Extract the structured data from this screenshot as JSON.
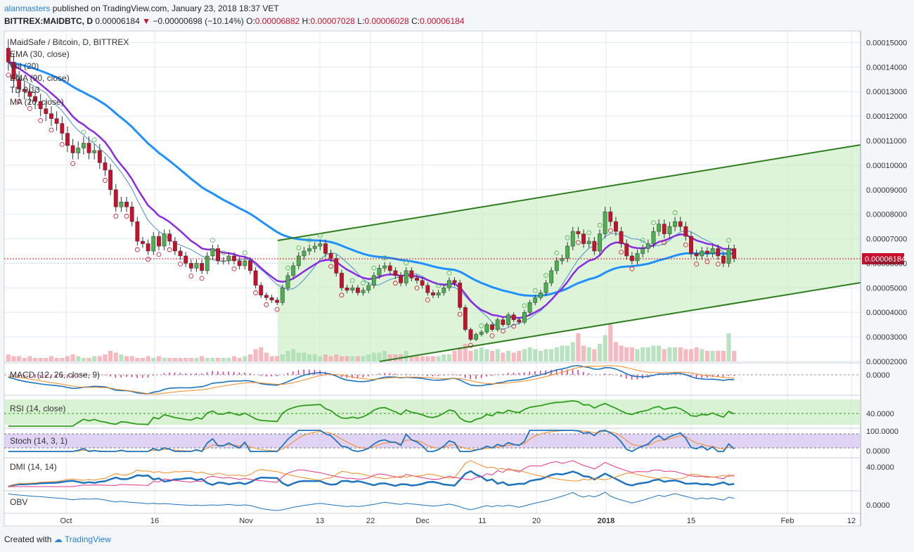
{
  "header": {
    "author": "alanmasters",
    "published": "published on TradingView.com, January 23, 2018 18:37 VET"
  },
  "ticker": {
    "symbol": "BITTREX:MAIDBTC, D",
    "last": "0.00006184",
    "change": "−0.00000698 (−10.14%)",
    "open_label": "O:",
    "open": "0.00006882",
    "high_label": "H:",
    "high": "0.00007028",
    "low_label": "L:",
    "low": "0.00006028",
    "close_label": "C:",
    "close": "0.00006184"
  },
  "footer": {
    "created_with": "Created with",
    "brand": "TradingView"
  },
  "colors": {
    "up": "#4caf50",
    "down": "#c8102e",
    "ema30": "#8a2be2",
    "ema90": "#1e90ff",
    "channel": "#2e7d1e"
  },
  "chart_data": {
    "type": "candlestick",
    "title": "MaidSafe / Bitcoin, D, BITTREX",
    "indicators": [
      "EMA (30, close)",
      "Vol (20)",
      "EMA (90, close)",
      "TD 9/13",
      "MA (20, close)"
    ],
    "y_axis": {
      "ticks": [
        "0.00015000",
        "0.00014000",
        "0.00013000",
        "0.00012000",
        "0.00011000",
        "0.00010000",
        "0.00009000",
        "0.00008000",
        "0.00007000",
        "0.00006000",
        "0.00005000",
        "0.00004000",
        "0.00003000",
        "0.00002000"
      ],
      "ylim": [
        2e-05,
        0.000153
      ]
    },
    "x_axis": {
      "ticks": [
        "Oct",
        "16",
        "Nov",
        "13",
        "22",
        "Dec",
        "11",
        "20",
        "2018",
        "15",
        "Feb",
        "12"
      ]
    },
    "last_price_label": "0.00006184",
    "closes": [
      0.000142,
      0.000135,
      0.000131,
      0.00013,
      0.000128,
      0.000126,
      0.000123,
      0.000121,
      0.000119,
      0.000117,
      0.000113,
      0.000108,
      0.000105,
      0.000107,
      0.000109,
      0.000105,
      0.000106,
      0.000101,
      9.8e-05,
      9e-05,
      8.3e-05,
      8.5e-05,
      8.3e-05,
      7.7e-05,
      6.9e-05,
      6.8e-05,
      6.5e-05,
      7.1e-05,
      6.7e-05,
      7.2e-05,
      6.9e-05,
      6.5e-05,
      6.3e-05,
      6e-05,
      5.8e-05,
      6e-05,
      5.7e-05,
      6.3e-05,
      6.6e-05,
      6.1e-05,
      6.1e-05,
      6.3e-05,
      6.1e-05,
      5.9e-05,
      6.1e-05,
      5.7e-05,
      5.1e-05,
      4.7e-05,
      4.6e-05,
      4.5e-05,
      4.4e-05,
      5e-05,
      5.5e-05,
      5.9e-05,
      6.3e-05,
      6.5e-05,
      6.6e-05,
      6.7e-05,
      6.8e-05,
      6.4e-05,
      6.2e-05,
      5.6e-05,
      5e-05,
      4.9e-05,
      5e-05,
      4.8e-05,
      4.9e-05,
      5.1e-05,
      5.5e-05,
      5.8e-05,
      5.9e-05,
      5.7e-05,
      5.5e-05,
      5.2e-05,
      5.7e-05,
      5.4e-05,
      5.3e-05,
      5.1e-05,
      4.8e-05,
      4.7e-05,
      4.8e-05,
      5e-05,
      5.3e-05,
      5.2e-05,
      4.2e-05,
      3.3e-05,
      2.9e-05,
      3.1e-05,
      3.2e-05,
      3.5e-05,
      3.3e-05,
      3.7e-05,
      3.5e-05,
      3.9e-05,
      3.7e-05,
      3.6e-05,
      4e-05,
      4.4e-05,
      4.6e-05,
      4.8e-05,
      5.2e-05,
      5.7e-05,
      6.1e-05,
      6.2e-05,
      6.7e-05,
      7.3e-05,
      7.2e-05,
      6.8e-05,
      6.9e-05,
      6.5e-05,
      7.2e-05,
      8.1e-05,
      7.7e-05,
      7.3e-05,
      6.8e-05,
      6.3e-05,
      6.1e-05,
      6.4e-05,
      6.6e-05,
      6.8e-05,
      7.3e-05,
      7.6e-05,
      7.2e-05,
      7.5e-05,
      7.7e-05,
      7.5e-05,
      7.1e-05,
      6.4e-05,
      6.3e-05,
      6.5e-05,
      6.4e-05,
      6.6e-05,
      6.3e-05,
      6e-05,
      6.6e-05,
      6.2e-05
    ],
    "volume": [
      0.4,
      0.3,
      0.3,
      0.2,
      0.3,
      0.2,
      0.2,
      0.2,
      0.3,
      0.2,
      0.2,
      0.3,
      0.4,
      0.3,
      0.2,
      0.2,
      0.3,
      0.3,
      0.4,
      0.6,
      0.5,
      0.4,
      0.3,
      0.3,
      0.2,
      0.2,
      0.3,
      0.2,
      0.3,
      0.2,
      0.2,
      0.2,
      0.2,
      0.2,
      0.2,
      0.2,
      0.3,
      0.2,
      0.2,
      0.2,
      0.2,
      0.2,
      0.3,
      0.2,
      0.3,
      0.4,
      0.7,
      0.8,
      0.5,
      0.3,
      0.3,
      0.4,
      0.6,
      0.7,
      0.5,
      0.5,
      0.4,
      0.4,
      0.3,
      0.4,
      0.3,
      0.4,
      0.3,
      0.3,
      0.3,
      0.3,
      0.3,
      0.4,
      0.5,
      0.5,
      0.6,
      0.4,
      0.4,
      0.4,
      0.6,
      0.3,
      0.3,
      0.3,
      0.3,
      0.3,
      0.3,
      0.4,
      0.4,
      0.6,
      0.8,
      1.0,
      0.6,
      0.7,
      0.8,
      0.7,
      0.6,
      0.7,
      0.5,
      0.6,
      0.5,
      0.6,
      0.7,
      0.8,
      0.7,
      0.6,
      0.7,
      0.7,
      0.8,
      0.9,
      0.9,
      1.1,
      1.6,
      0.9,
      0.8,
      0.7,
      1.0,
      1.5,
      2.1,
      1.1,
      0.9,
      0.8,
      0.8,
      0.7,
      0.8,
      0.8,
      0.9,
      0.9,
      0.7,
      0.8,
      0.8,
      0.8,
      0.7,
      0.7,
      0.8,
      0.7,
      0.6,
      0.6,
      0.6,
      0.6,
      1.6,
      0.6
    ]
  },
  "panes": {
    "macd": {
      "label": "MACD (12, 26, close, 9)",
      "value": "0.0000"
    },
    "rsi": {
      "label": "RSI (14, close)",
      "value": "40.0000"
    },
    "stoch": {
      "label": "Stoch (14, 3, 1)",
      "value_top": "100.0000",
      "value_bottom": "0.0000"
    },
    "dmi": {
      "label": "DMI (14, 14)",
      "value": "40.0000"
    },
    "obv": {
      "label": "OBV",
      "value": "0.0000"
    }
  }
}
